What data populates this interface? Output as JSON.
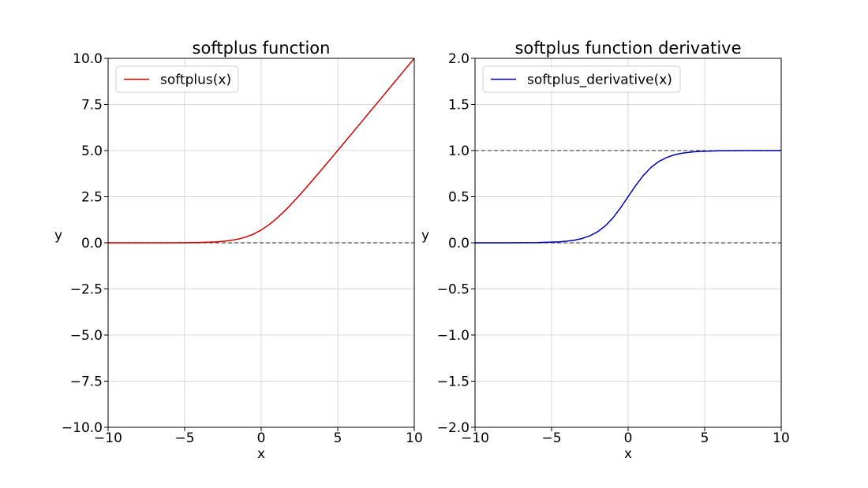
{
  "chart_data": [
    {
      "type": "line",
      "title": "softplus function",
      "xlabel": "x",
      "ylabel": "y",
      "xlim": [
        -10,
        10
      ],
      "ylim": [
        -10,
        10
      ],
      "xticks": [
        -10,
        -5,
        0,
        5,
        10
      ],
      "xtick_labels": [
        "−10",
        "−5",
        "0",
        "5",
        "10"
      ],
      "yticks": [
        -10,
        -7.5,
        -5,
        -2.5,
        0,
        2.5,
        5,
        7.5,
        10
      ],
      "ytick_labels": [
        "−10.0",
        "−7.5",
        "−5.0",
        "−2.5",
        "0.0",
        "2.5",
        "5.0",
        "7.5",
        "10.0"
      ],
      "grid": true,
      "legend_position": "upper-left",
      "reference_lines": [
        0
      ],
      "series": [
        {
          "name": "softplus(x)",
          "color": "#cc0000",
          "x": [
            -10,
            -9,
            -8,
            -7,
            -6,
            -5,
            -4.5,
            -4,
            -3.5,
            -3,
            -2.5,
            -2,
            -1.5,
            -1,
            -0.5,
            0,
            0.5,
            1,
            1.5,
            2,
            2.5,
            3,
            3.5,
            4,
            4.5,
            5,
            6,
            7,
            8,
            9,
            10
          ],
          "y": [
            0,
            0,
            0,
            0,
            0.002,
            0.007,
            0.011,
            0.018,
            0.03,
            0.049,
            0.079,
            0.127,
            0.201,
            0.313,
            0.474,
            0.693,
            0.974,
            1.313,
            1.701,
            2.127,
            2.579,
            3.049,
            3.53,
            4.018,
            4.511,
            5.007,
            6.002,
            7.001,
            8,
            9,
            10
          ]
        }
      ]
    },
    {
      "type": "line",
      "title": "softplus function derivative",
      "xlabel": "x",
      "ylabel": "y",
      "xlim": [
        -10,
        10
      ],
      "ylim": [
        -2,
        2
      ],
      "xticks": [
        -10,
        -5,
        0,
        5,
        10
      ],
      "xtick_labels": [
        "−10",
        "−5",
        "0",
        "5",
        "10"
      ],
      "yticks": [
        -2,
        -1.5,
        -1,
        -0.5,
        0,
        0.5,
        1,
        1.5,
        2
      ],
      "ytick_labels": [
        "−2.0",
        "−1.5",
        "−1.0",
        "−0.5",
        "0.0",
        "0.5",
        "1.0",
        "1.5",
        "2.0"
      ],
      "grid": true,
      "legend_position": "upper-left",
      "reference_lines": [
        0,
        1
      ],
      "series": [
        {
          "name": "softplus_derivative(x)",
          "color": "#0000aa",
          "x": [
            -10,
            -9,
            -8,
            -7,
            -6,
            -5,
            -4.5,
            -4,
            -3.5,
            -3,
            -2.5,
            -2,
            -1.5,
            -1,
            -0.5,
            0,
            0.5,
            1,
            1.5,
            2,
            2.5,
            3,
            3.5,
            4,
            4.5,
            5,
            6,
            7,
            8,
            9,
            10
          ],
          "y": [
            0,
            0,
            0,
            0.001,
            0.002,
            0.007,
            0.011,
            0.018,
            0.029,
            0.047,
            0.076,
            0.119,
            0.182,
            0.269,
            0.378,
            0.5,
            0.622,
            0.731,
            0.818,
            0.881,
            0.924,
            0.953,
            0.971,
            0.982,
            0.989,
            0.993,
            0.998,
            0.999,
            1,
            1,
            1
          ]
        }
      ]
    }
  ]
}
